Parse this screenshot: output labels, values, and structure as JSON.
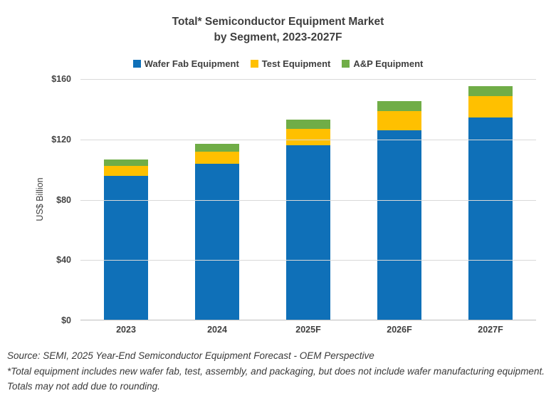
{
  "title": {
    "line1": "Total* Semiconductor Equipment Market",
    "line2": "by Segment, 2023-2027F"
  },
  "legend": [
    {
      "label": "Wafer Fab Equipment",
      "color": "#0f70b8"
    },
    {
      "label": "Test Equipment",
      "color": "#ffc000"
    },
    {
      "label": "A&P Equipment",
      "color": "#70ad47"
    }
  ],
  "y_axis": {
    "title": "US$ Billion",
    "ticks": [
      "$160",
      "$120",
      "$80",
      "$40",
      "$0"
    ],
    "max": 160
  },
  "chart_data": {
    "type": "bar",
    "stacked": true,
    "title": "Total* Semiconductor Equipment Market by Segment, 2023-2027F",
    "categories": [
      "2023",
      "2024",
      "2025F",
      "2026F",
      "2027F"
    ],
    "series": [
      {
        "name": "Wafer Fab Equipment",
        "color": "#0f70b8",
        "values": [
          96,
          104,
          116,
          126,
          134.5
        ]
      },
      {
        "name": "Test Equipment",
        "color": "#ffc000",
        "values": [
          6.5,
          8,
          11,
          13,
          14
        ]
      },
      {
        "name": "A&P Equipment",
        "color": "#70ad47",
        "values": [
          4,
          5,
          6,
          6.5,
          7
        ]
      }
    ],
    "totals": [
      106.5,
      117,
      133,
      145.5,
      155.5
    ],
    "ylabel": "US$ Billion",
    "ylim": [
      0,
      160
    ],
    "grid": true,
    "legend_position": "top"
  },
  "footer": {
    "lines": [
      "Source: SEMI, 2025 Year-End Semiconductor Equipment Forecast - OEM Perspective",
      "*Total equipment includes new wafer fab, test, assembly, and packaging, but does not include wafer manufacturing equipment.",
      "Totals may not add due to rounding."
    ]
  }
}
